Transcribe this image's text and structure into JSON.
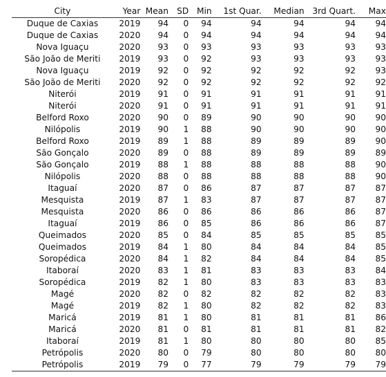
{
  "table": {
    "headers": [
      "City",
      "Year",
      "Mean",
      "SD",
      "Min",
      "1st Quar.",
      "Median",
      "3rd Quart.",
      "Max"
    ],
    "rows": [
      [
        "Duque de Caxias",
        "2019",
        "94",
        "0",
        "94",
        "94",
        "94",
        "94",
        "94"
      ],
      [
        "Duque de Caxias",
        "2020",
        "94",
        "0",
        "94",
        "94",
        "94",
        "94",
        "94"
      ],
      [
        "Nova Iguaçu",
        "2020",
        "93",
        "0",
        "93",
        "93",
        "93",
        "93",
        "93"
      ],
      [
        "São João de Meriti",
        "2019",
        "93",
        "0",
        "92",
        "93",
        "93",
        "93",
        "93"
      ],
      [
        "Nova Iguaçu",
        "2019",
        "92",
        "0",
        "92",
        "92",
        "92",
        "92",
        "93"
      ],
      [
        "São João de Meriti",
        "2020",
        "92",
        "0",
        "92",
        "92",
        "92",
        "92",
        "92"
      ],
      [
        "Niterói",
        "2019",
        "91",
        "0",
        "91",
        "91",
        "91",
        "91",
        "91"
      ],
      [
        "Niterói",
        "2020",
        "91",
        "0",
        "91",
        "91",
        "91",
        "91",
        "91"
      ],
      [
        "Belford Roxo",
        "2020",
        "90",
        "0",
        "89",
        "90",
        "90",
        "90",
        "90"
      ],
      [
        "Nilópolis",
        "2019",
        "90",
        "1",
        "88",
        "90",
        "90",
        "90",
        "90"
      ],
      [
        "Belford Roxo",
        "2019",
        "89",
        "1",
        "88",
        "89",
        "89",
        "89",
        "90"
      ],
      [
        "São Gonçalo",
        "2020",
        "89",
        "0",
        "88",
        "89",
        "89",
        "89",
        "89"
      ],
      [
        "São Gonçalo",
        "2019",
        "88",
        "1",
        "88",
        "88",
        "88",
        "88",
        "90"
      ],
      [
        "Nilópolis",
        "2020",
        "88",
        "0",
        "88",
        "88",
        "88",
        "88",
        "90"
      ],
      [
        "Itaguaí",
        "2020",
        "87",
        "0",
        "86",
        "87",
        "87",
        "87",
        "87"
      ],
      [
        "Mesquista",
        "2019",
        "87",
        "1",
        "83",
        "87",
        "87",
        "87",
        "87"
      ],
      [
        "Mesquista",
        "2020",
        "86",
        "0",
        "86",
        "86",
        "86",
        "86",
        "87"
      ],
      [
        "Itaguaí",
        "2019",
        "86",
        "0",
        "85",
        "86",
        "86",
        "86",
        "87"
      ],
      [
        "Queimados",
        "2020",
        "85",
        "0",
        "84",
        "85",
        "85",
        "85",
        "85"
      ],
      [
        "Queimados",
        "2019",
        "84",
        "1",
        "80",
        "84",
        "84",
        "84",
        "85"
      ],
      [
        "Soropédica",
        "2020",
        "84",
        "1",
        "82",
        "84",
        "84",
        "84",
        "85"
      ],
      [
        "Itaboraí",
        "2020",
        "83",
        "1",
        "81",
        "83",
        "83",
        "83",
        "84"
      ],
      [
        "Soropédica",
        "2019",
        "82",
        "1",
        "80",
        "83",
        "83",
        "83",
        "83"
      ],
      [
        "Magé",
        "2020",
        "82",
        "0",
        "82",
        "82",
        "82",
        "82",
        "83"
      ],
      [
        "Magé",
        "2019",
        "82",
        "1",
        "80",
        "82",
        "82",
        "82",
        "83"
      ],
      [
        "Maricá",
        "2019",
        "81",
        "1",
        "80",
        "81",
        "81",
        "81",
        "86"
      ],
      [
        "Maricá",
        "2020",
        "81",
        "0",
        "81",
        "81",
        "81",
        "81",
        "82"
      ],
      [
        "Itaboraí",
        "2019",
        "81",
        "1",
        "80",
        "80",
        "80",
        "80",
        "85"
      ],
      [
        "Petrópolis",
        "2020",
        "80",
        "0",
        "79",
        "80",
        "80",
        "80",
        "80"
      ],
      [
        "Petrópolis",
        "2019",
        "79",
        "0",
        "77",
        "79",
        "79",
        "79",
        "79"
      ]
    ]
  }
}
